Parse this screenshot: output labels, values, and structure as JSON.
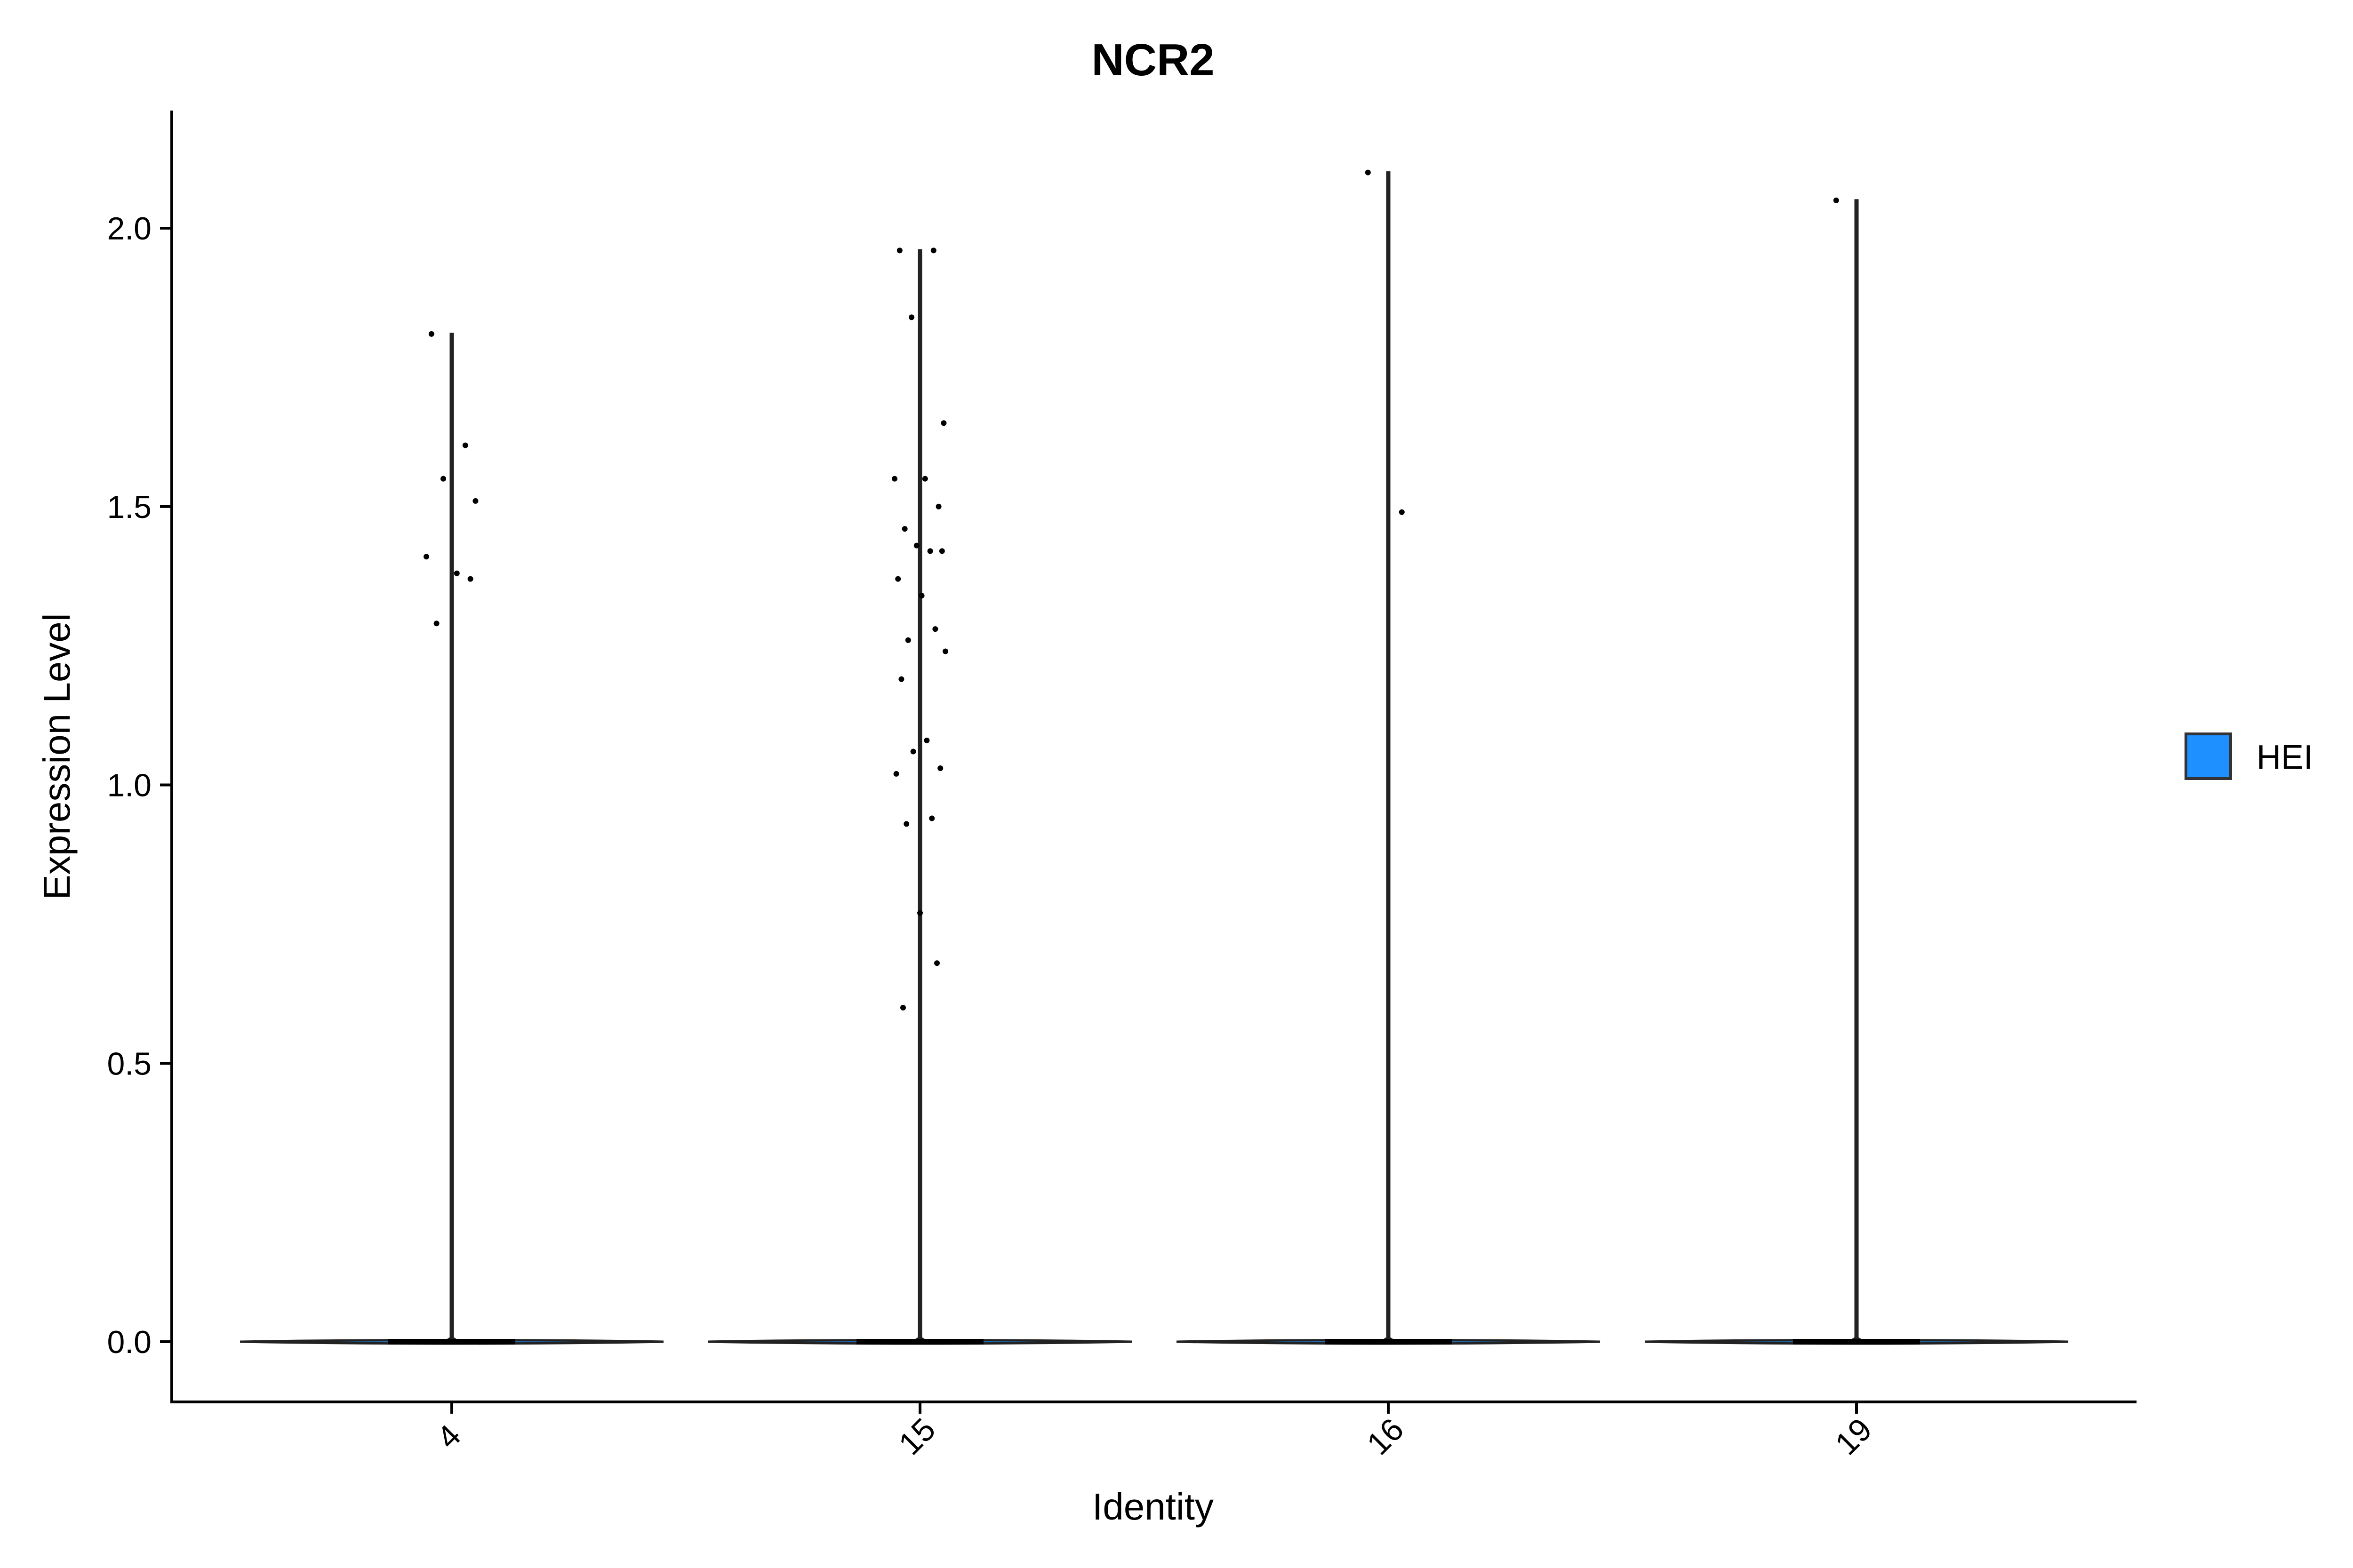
{
  "chart_data": {
    "type": "violin",
    "title": "NCR2",
    "xlabel": "Identity",
    "ylabel": "Expression Level",
    "categories": [
      "4",
      "15",
      "16",
      "19"
    ],
    "ylim": [
      -0.1,
      2.2
    ],
    "yticks": [
      0.0,
      0.5,
      1.0,
      1.5,
      2.0
    ],
    "ytick_labels": [
      "0.0",
      "0.5",
      "1.0",
      "1.5",
      "2.0"
    ],
    "grid": false,
    "legend": {
      "position": "right",
      "entries": [
        {
          "name": "HEI",
          "color": "#1E90FF"
        }
      ]
    },
    "violin_max": [
      1.81,
      1.96,
      2.1,
      2.05
    ],
    "points": [
      {
        "category": "4",
        "values": [
          1.81,
          1.61,
          1.55,
          1.51,
          1.41,
          1.38,
          1.37,
          1.29
        ]
      },
      {
        "category": "15",
        "values": [
          1.96,
          1.96,
          1.84,
          1.65,
          1.55,
          1.55,
          1.5,
          1.46,
          1.42,
          1.43,
          1.42,
          1.37,
          1.34,
          1.28,
          1.26,
          1.24,
          1.19,
          1.08,
          1.06,
          1.03,
          1.02,
          0.94,
          0.93,
          0.77,
          0.68,
          0.6
        ]
      },
      {
        "category": "16",
        "values": [
          2.1,
          1.49
        ]
      },
      {
        "category": "19",
        "values": [
          2.05
        ]
      }
    ]
  }
}
